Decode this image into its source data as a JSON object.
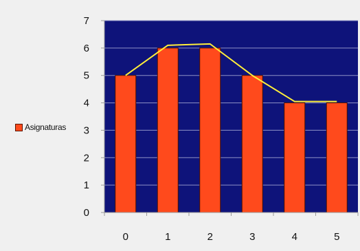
{
  "chart_data": {
    "type": "bar",
    "categories": [
      "0",
      "1",
      "2",
      "3",
      "4",
      "5"
    ],
    "series": [
      {
        "name": "Asignaturas",
        "values": [
          5,
          6,
          6,
          5,
          4,
          4
        ]
      }
    ],
    "overlay_line": {
      "values": [
        5,
        6.1,
        6.15,
        5,
        4.05,
        4.05
      ]
    },
    "y_ticks": [
      "0",
      "1",
      "2",
      "3",
      "4",
      "5",
      "6",
      "7"
    ],
    "ylim": [
      0,
      7
    ],
    "grid": true,
    "legend_position": "left",
    "colors": {
      "plot_background": "#0e137a",
      "bar_fill": "#ff4a1c",
      "bar_stroke": "#4a1000",
      "line": "#ffef3a",
      "grid": "#8e92c6",
      "axis": "#9a9a9a"
    }
  }
}
